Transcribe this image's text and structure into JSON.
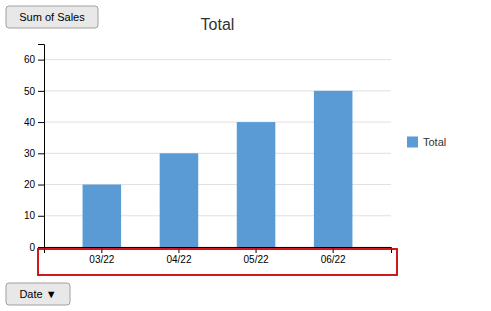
{
  "chart_data": {
    "type": "bar",
    "title": "Total",
    "categories": [
      "03/22",
      "04/22",
      "05/22",
      "06/22"
    ],
    "series": [
      {
        "name": "Total",
        "color": "#5B9BD5",
        "values": [
          20,
          30,
          40,
          50
        ]
      }
    ],
    "ylim": [
      0,
      65
    ],
    "yticks": [
      0,
      10,
      20,
      30,
      40,
      50,
      60
    ],
    "ylabel": "Sum of Sales",
    "xlabel": "Date ▼",
    "grid": true,
    "legend": "right"
  }
}
